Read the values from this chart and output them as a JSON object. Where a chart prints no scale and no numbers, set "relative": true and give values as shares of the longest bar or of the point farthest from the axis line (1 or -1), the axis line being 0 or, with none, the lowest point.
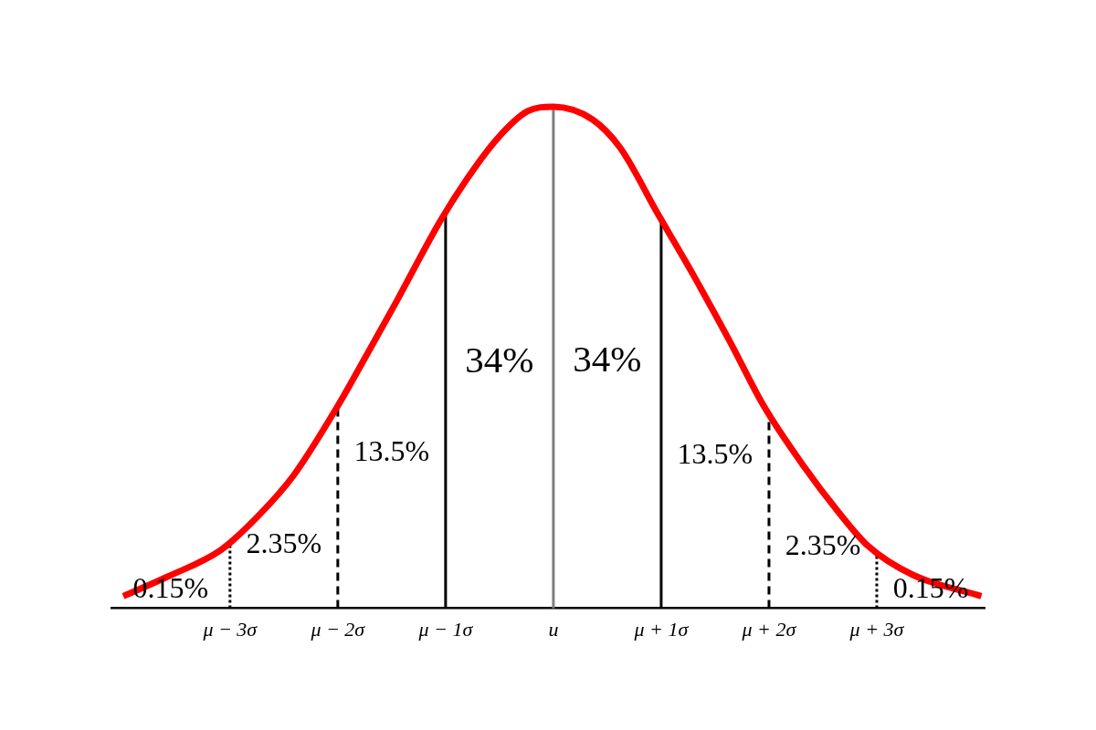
{
  "chart_data": {
    "type": "line",
    "relative": true,
    "x": [
      -3.99,
      -3.59,
      -3.08,
      -2.73,
      -2.41,
      -2.01,
      -1.73,
      -1.46,
      -1.05,
      -0.77,
      -0.51,
      -0.24,
      0,
      0.36,
      0.62,
      0.97,
      1.31,
      1.63,
      1.95,
      2.32,
      2.64,
      2.92,
      3.33,
      3.97
    ],
    "series": [
      {
        "color": "#ff0000",
        "values": [
          0.024,
          0.062,
          0.117,
          0.186,
          0.265,
          0.4,
          0.506,
          0.61,
          0.772,
          0.866,
          0.939,
          0.991,
          1,
          0.975,
          0.918,
          0.786,
          0.66,
          0.535,
          0.404,
          0.284,
          0.193,
          0.124,
          0.067,
          0.024
        ]
      }
    ],
    "xlim": [
      -4.1,
      4.0
    ],
    "xticks": [
      {
        "value": -3,
        "label": "μ − 3σ"
      },
      {
        "value": -2,
        "label": "μ − 2σ"
      },
      {
        "value": -1,
        "label": "μ − 1σ"
      },
      {
        "value": 0,
        "label": "u"
      },
      {
        "value": 1,
        "label": "μ + 1σ"
      },
      {
        "value": 2,
        "label": "μ + 2σ"
      },
      {
        "value": 3,
        "label": "μ + 3σ"
      }
    ],
    "ref_lines": [
      {
        "axis": "x",
        "value": -3,
        "color": "#000000",
        "line_style": "dotted"
      },
      {
        "axis": "x",
        "value": -2,
        "color": "#000000",
        "line_style": "dashed"
      },
      {
        "axis": "x",
        "value": -1,
        "color": "#000000",
        "line_style": "solid"
      },
      {
        "axis": "x",
        "value": 0,
        "color": "#808080",
        "line_style": "solid"
      },
      {
        "axis": "x",
        "value": 1,
        "color": "#000000",
        "line_style": "solid"
      },
      {
        "axis": "x",
        "value": 2,
        "color": "#000000",
        "line_style": "dashed"
      },
      {
        "axis": "x",
        "value": 3,
        "color": "#000000",
        "line_style": "dotted"
      }
    ],
    "annotations": [
      "0.15%",
      "2.35%",
      "13.5%",
      "34%",
      "34%",
      "13.5%",
      "2.35%",
      "0.15%"
    ],
    "legend": false,
    "marker": "none",
    "line_style": "solid"
  }
}
